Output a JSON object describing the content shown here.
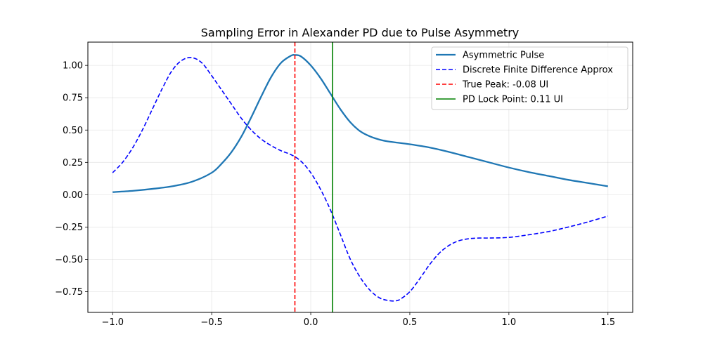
{
  "chart_data": {
    "type": "line",
    "title": "Sampling Error in Alexander PD due to Pulse Asymmetry",
    "xlabel": "",
    "ylabel": "",
    "xlim": [
      -1.125,
      1.625
    ],
    "ylim": [
      -0.91,
      1.18
    ],
    "grid": true,
    "legend_position": "top-right",
    "x_ticks": [
      -1.0,
      -0.5,
      0.0,
      0.5,
      1.0,
      1.5
    ],
    "x_tick_labels": [
      "−1.0",
      "−0.5",
      "0.0",
      "0.5",
      "1.0",
      "1.5"
    ],
    "y_ticks": [
      -0.75,
      -0.5,
      -0.25,
      0.0,
      0.25,
      0.5,
      0.75,
      1.0
    ],
    "y_tick_labels": [
      "−0.75",
      "−0.50",
      "−0.25",
      "0.00",
      "0.25",
      "0.50",
      "0.75",
      "1.00"
    ],
    "series": [
      {
        "name": "Asymmetric Pulse",
        "color": "#1f77b4",
        "style": "solid",
        "x": [
          -1.0,
          -0.9,
          -0.8,
          -0.7,
          -0.6,
          -0.5,
          -0.45,
          -0.4,
          -0.35,
          -0.3,
          -0.25,
          -0.2,
          -0.15,
          -0.1,
          -0.08,
          -0.05,
          0.0,
          0.05,
          0.1,
          0.15,
          0.2,
          0.25,
          0.3,
          0.35,
          0.4,
          0.5,
          0.6,
          0.7,
          0.8,
          0.9,
          1.0,
          1.1,
          1.2,
          1.3,
          1.4,
          1.5
        ],
        "y": [
          0.02,
          0.03,
          0.045,
          0.065,
          0.1,
          0.17,
          0.24,
          0.33,
          0.45,
          0.6,
          0.76,
          0.91,
          1.02,
          1.075,
          1.08,
          1.07,
          1.0,
          0.9,
          0.78,
          0.66,
          0.56,
          0.49,
          0.45,
          0.425,
          0.41,
          0.39,
          0.365,
          0.33,
          0.29,
          0.25,
          0.21,
          0.175,
          0.145,
          0.115,
          0.09,
          0.065
        ]
      },
      {
        "name": "Discrete Finite Difference Approx",
        "color": "#0000ff",
        "style": "dashed",
        "x": [
          -1.0,
          -0.95,
          -0.9,
          -0.85,
          -0.8,
          -0.75,
          -0.7,
          -0.65,
          -0.6,
          -0.55,
          -0.5,
          -0.45,
          -0.4,
          -0.35,
          -0.3,
          -0.25,
          -0.2,
          -0.15,
          -0.1,
          -0.05,
          0.0,
          0.05,
          0.1,
          0.15,
          0.2,
          0.25,
          0.3,
          0.35,
          0.4,
          0.43,
          0.45,
          0.5,
          0.55,
          0.6,
          0.65,
          0.7,
          0.75,
          0.8,
          0.85,
          0.9,
          1.0,
          1.1,
          1.2,
          1.3,
          1.4,
          1.5
        ],
        "y": [
          0.17,
          0.25,
          0.36,
          0.5,
          0.66,
          0.82,
          0.96,
          1.04,
          1.06,
          1.02,
          0.92,
          0.81,
          0.7,
          0.59,
          0.5,
          0.43,
          0.38,
          0.34,
          0.31,
          0.26,
          0.17,
          0.04,
          -0.12,
          -0.31,
          -0.5,
          -0.64,
          -0.74,
          -0.8,
          -0.82,
          -0.82,
          -0.81,
          -0.75,
          -0.65,
          -0.54,
          -0.45,
          -0.39,
          -0.355,
          -0.34,
          -0.335,
          -0.335,
          -0.33,
          -0.31,
          -0.285,
          -0.25,
          -0.21,
          -0.165
        ]
      }
    ],
    "vlines": [
      {
        "name": "True Peak: -0.08 UI",
        "x": -0.08,
        "color": "#ff0000",
        "style": "dashed"
      },
      {
        "name": "PD Lock Point: 0.11 UI",
        "x": 0.11,
        "color": "#008000",
        "style": "solid"
      }
    ]
  }
}
